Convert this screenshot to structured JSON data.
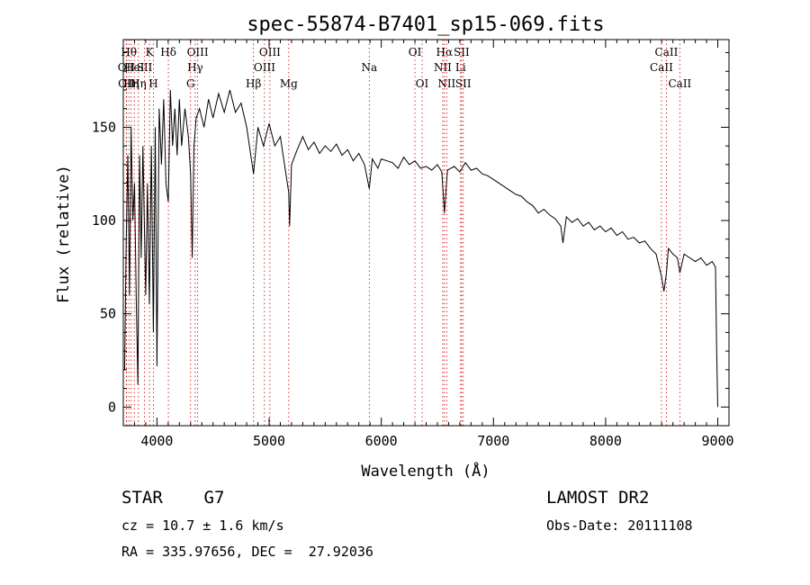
{
  "chart_data": {
    "type": "line",
    "title": "spec-55874-B7401_sp15-069.fits",
    "xlabel": "Wavelength (Å)",
    "ylabel": "Flux (relative)",
    "xlim": [
      3700,
      9100
    ],
    "ylim": [
      -10,
      197
    ],
    "xticks": [
      4000,
      5000,
      6000,
      7000,
      8000,
      9000
    ],
    "yticks": [
      0,
      50,
      100,
      150
    ],
    "grid": false,
    "line_color": "#000000",
    "marker_color": "#cc0000",
    "series": [
      {
        "points": [
          [
            3712,
            20
          ],
          [
            3725,
            85
          ],
          [
            3740,
            135
          ],
          [
            3755,
            60
          ],
          [
            3770,
            150
          ],
          [
            3785,
            100
          ],
          [
            3800,
            120
          ],
          [
            3815,
            60
          ],
          [
            3830,
            12
          ],
          [
            3845,
            135
          ],
          [
            3860,
            80
          ],
          [
            3875,
            140
          ],
          [
            3890,
            90
          ],
          [
            3900,
            60
          ],
          [
            3915,
            120
          ],
          [
            3933,
            55
          ],
          [
            3950,
            140
          ],
          [
            3968,
            40
          ],
          [
            3985,
            150
          ],
          [
            4000,
            22
          ],
          [
            4020,
            160
          ],
          [
            4040,
            130
          ],
          [
            4060,
            165
          ],
          [
            4080,
            120
          ],
          [
            4101,
            110
          ],
          [
            4120,
            170
          ],
          [
            4140,
            140
          ],
          [
            4160,
            160
          ],
          [
            4180,
            135
          ],
          [
            4200,
            165
          ],
          [
            4220,
            140
          ],
          [
            4250,
            160
          ],
          [
            4280,
            145
          ],
          [
            4300,
            125
          ],
          [
            4315,
            80
          ],
          [
            4330,
            140
          ],
          [
            4350,
            155
          ],
          [
            4380,
            160
          ],
          [
            4420,
            150
          ],
          [
            4460,
            165
          ],
          [
            4500,
            155
          ],
          [
            4550,
            168
          ],
          [
            4600,
            158
          ],
          [
            4650,
            170
          ],
          [
            4700,
            158
          ],
          [
            4750,
            163
          ],
          [
            4800,
            150
          ],
          [
            4861,
            125
          ],
          [
            4900,
            150
          ],
          [
            4950,
            140
          ],
          [
            5000,
            152
          ],
          [
            5050,
            140
          ],
          [
            5100,
            145
          ],
          [
            5150,
            125
          ],
          [
            5175,
            115
          ],
          [
            5183,
            97
          ],
          [
            5200,
            130
          ],
          [
            5250,
            138
          ],
          [
            5300,
            145
          ],
          [
            5350,
            138
          ],
          [
            5400,
            142
          ],
          [
            5450,
            136
          ],
          [
            5500,
            140
          ],
          [
            5550,
            137
          ],
          [
            5600,
            141
          ],
          [
            5650,
            135
          ],
          [
            5700,
            138
          ],
          [
            5750,
            132
          ],
          [
            5800,
            136
          ],
          [
            5850,
            130
          ],
          [
            5893,
            117
          ],
          [
            5920,
            133
          ],
          [
            5970,
            128
          ],
          [
            6000,
            133
          ],
          [
            6050,
            132
          ],
          [
            6100,
            131
          ],
          [
            6150,
            128
          ],
          [
            6200,
            134
          ],
          [
            6250,
            130
          ],
          [
            6300,
            132
          ],
          [
            6350,
            128
          ],
          [
            6400,
            129
          ],
          [
            6450,
            127
          ],
          [
            6500,
            130
          ],
          [
            6540,
            126
          ],
          [
            6563,
            104
          ],
          [
            6590,
            127
          ],
          [
            6650,
            129
          ],
          [
            6700,
            126
          ],
          [
            6750,
            131
          ],
          [
            6800,
            127
          ],
          [
            6850,
            128
          ],
          [
            6900,
            125
          ],
          [
            6950,
            124
          ],
          [
            7000,
            122
          ],
          [
            7050,
            120
          ],
          [
            7100,
            118
          ],
          [
            7150,
            116
          ],
          [
            7200,
            114
          ],
          [
            7250,
            113
          ],
          [
            7300,
            110
          ],
          [
            7350,
            108
          ],
          [
            7400,
            104
          ],
          [
            7450,
            106
          ],
          [
            7500,
            103
          ],
          [
            7550,
            101
          ],
          [
            7600,
            97
          ],
          [
            7620,
            88
          ],
          [
            7650,
            102
          ],
          [
            7700,
            99
          ],
          [
            7750,
            101
          ],
          [
            7800,
            97
          ],
          [
            7850,
            99
          ],
          [
            7900,
            95
          ],
          [
            7950,
            97
          ],
          [
            8000,
            94
          ],
          [
            8050,
            96
          ],
          [
            8100,
            92
          ],
          [
            8150,
            94
          ],
          [
            8200,
            90
          ],
          [
            8250,
            91
          ],
          [
            8300,
            88
          ],
          [
            8350,
            89
          ],
          [
            8400,
            85
          ],
          [
            8450,
            82
          ],
          [
            8498,
            70
          ],
          [
            8520,
            62
          ],
          [
            8542,
            72
          ],
          [
            8560,
            85
          ],
          [
            8600,
            82
          ],
          [
            8640,
            80
          ],
          [
            8662,
            72
          ],
          [
            8700,
            82
          ],
          [
            8750,
            80
          ],
          [
            8800,
            78
          ],
          [
            8850,
            80
          ],
          [
            8900,
            76
          ],
          [
            8950,
            78
          ],
          [
            8980,
            75
          ],
          [
            8990,
            30
          ],
          [
            9000,
            0
          ]
        ]
      }
    ],
    "line_markers": [
      {
        "wl": 3727,
        "label": "OII",
        "row": 2
      },
      {
        "wl": 3730,
        "label": "OII",
        "row": 3
      },
      {
        "wl": 3750,
        "label": "Hθ",
        "row": 1
      },
      {
        "wl": 3771,
        "label": "Hη",
        "row": 3
      },
      {
        "wl": 3798,
        "label": "HeI",
        "row": 2
      },
      {
        "wl": 3835,
        "label": "Hη",
        "row": 3
      },
      {
        "wl": 3889,
        "label": "SII",
        "row": 2
      },
      {
        "wl": 3934,
        "label": "K",
        "row": 1
      },
      {
        "wl": 3969,
        "label": "H",
        "row": 3
      },
      {
        "wl": 4102,
        "label": "Hδ",
        "row": 1
      },
      {
        "wl": 4300,
        "label": "G",
        "row": 3
      },
      {
        "wl": 4341,
        "label": "Hγ",
        "row": 2
      },
      {
        "wl": 4363,
        "label": "OIII",
        "row": 1
      },
      {
        "wl": 4861,
        "label": "Hβ",
        "row": 3
      },
      {
        "wl": 4959,
        "label": "OIII",
        "row": 2
      },
      {
        "wl": 5007,
        "label": "OIII",
        "row": 1
      },
      {
        "wl": 5175,
        "label": "Mg",
        "row": 3
      },
      {
        "wl": 5893,
        "label": "Na",
        "row": 2
      },
      {
        "wl": 6300,
        "label": "OI",
        "row": 1
      },
      {
        "wl": 6364,
        "label": "OI",
        "row": 3
      },
      {
        "wl": 6548,
        "label": "NII",
        "row": 2
      },
      {
        "wl": 6563,
        "label": "Hα",
        "row": 1
      },
      {
        "wl": 6583,
        "label": "NII",
        "row": 3
      },
      {
        "wl": 6707,
        "label": "Li",
        "row": 2
      },
      {
        "wl": 6716,
        "label": "SII",
        "row": 1
      },
      {
        "wl": 6731,
        "label": "SII",
        "row": 3
      },
      {
        "wl": 8498,
        "label": "CaII",
        "row": 2
      },
      {
        "wl": 8542,
        "label": "CaII",
        "row": 1
      },
      {
        "wl": 8662,
        "label": "CaII",
        "row": 3
      }
    ]
  },
  "info": {
    "object_type": "STAR    G7",
    "survey": "LAMOST DR2",
    "cz": "cz = 10.7 ± 1.6 km/s",
    "obs_date": "Obs-Date: 20111108",
    "radec": "RA = 335.97656, DEC =  27.92036"
  }
}
